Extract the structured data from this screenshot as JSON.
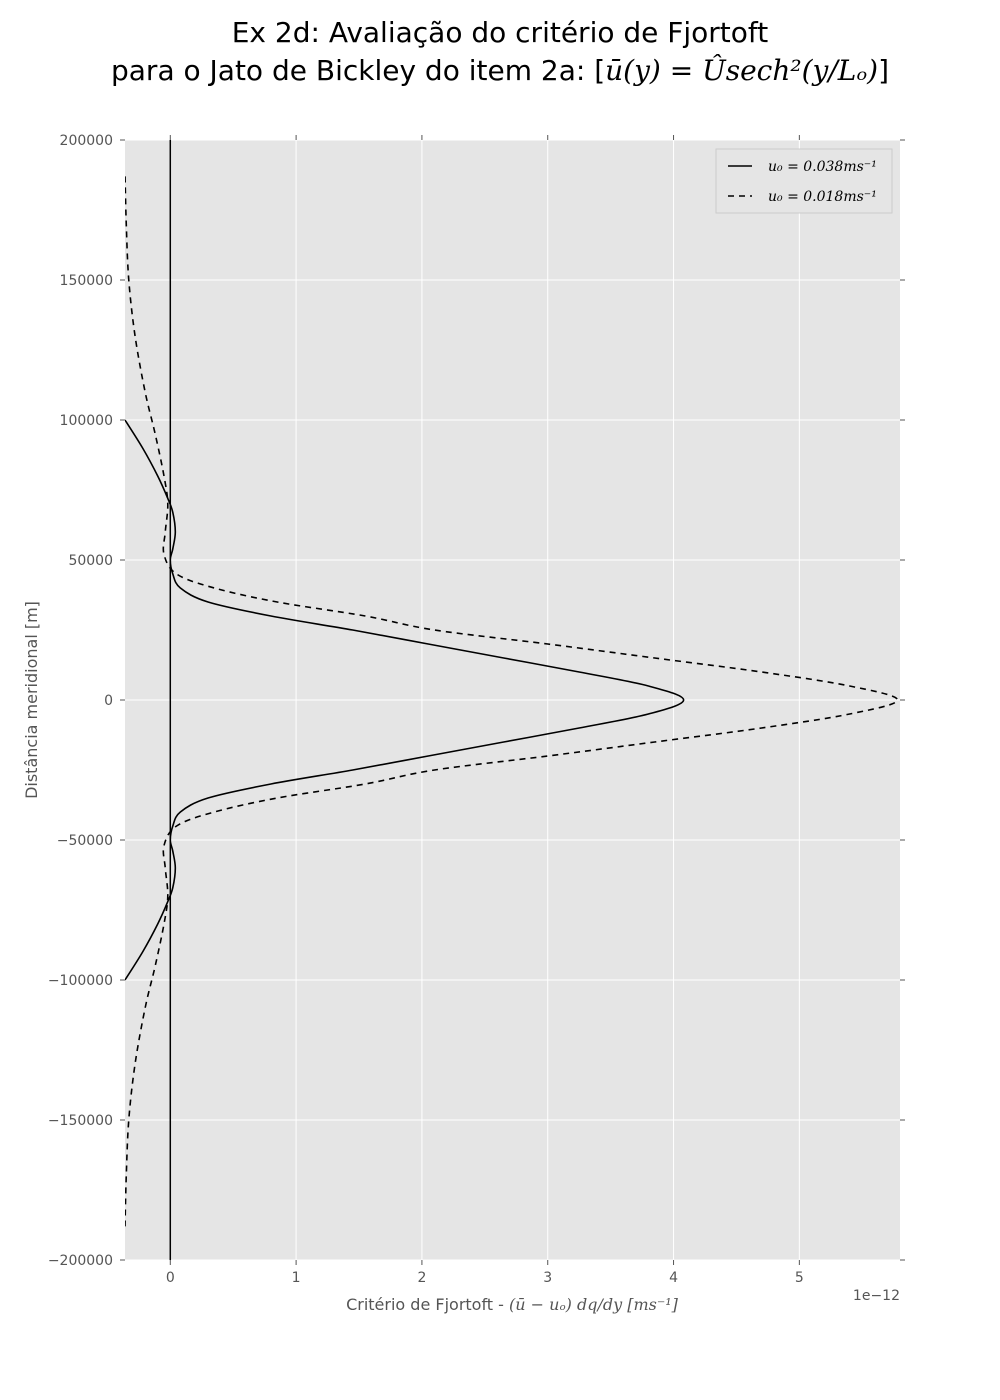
{
  "chart_data": {
    "type": "line",
    "title_line1": "Ex 2d: Avaliação do critério de Fjortoft",
    "title_line2_prefix": "para o Jato de Bickley do item 2a: [",
    "title_line2_math": "ū(y) = Ûsech²(y/Lₒ)",
    "title_line2_suffix": "]",
    "xlabel_prefix": "Critério de Fjortoft - ",
    "xlabel_math": "(ū − uₒ) dq/dy [ms⁻¹]",
    "ylabel": "Distância meridional [m]",
    "x_offset_text": "1e−12",
    "xlim": [
      -0.36,
      5.8
    ],
    "ylim": [
      -200000,
      200000
    ],
    "x_ticks": [
      0,
      1,
      2,
      3,
      4,
      5
    ],
    "x_tick_labels": [
      "0",
      "1",
      "2",
      "3",
      "4",
      "5"
    ],
    "y_ticks": [
      200000,
      150000,
      100000,
      50000,
      0,
      -50000,
      -100000,
      -150000,
      -200000
    ],
    "y_tick_labels": [
      "200000",
      "150000",
      "100000",
      "50000",
      "0",
      "−50000",
      "−100000",
      "−150000",
      "−200000"
    ],
    "grid": true,
    "legend_position": "top-right",
    "vertical_reference_line_x": 0,
    "series": [
      {
        "name": "u₀ = 0.038ms⁻¹",
        "style": "solid",
        "color": "#000000",
        "points": [
          [
            -0.36,
            -100000
          ],
          [
            -0.22,
            -90000
          ],
          [
            -0.1,
            -80000
          ],
          [
            -0.02,
            -72000
          ],
          [
            0.02,
            -67000
          ],
          [
            0.04,
            -60000
          ],
          [
            0.02,
            -54000
          ],
          [
            0.0,
            -50000
          ],
          [
            0.02,
            -45000
          ],
          [
            0.08,
            -40000
          ],
          [
            0.3,
            -35000
          ],
          [
            0.8,
            -30000
          ],
          [
            1.45,
            -25000
          ],
          [
            2.05,
            -20000
          ],
          [
            2.65,
            -15000
          ],
          [
            3.25,
            -10000
          ],
          [
            3.8,
            -5000
          ],
          [
            4.08,
            0
          ],
          [
            3.8,
            5000
          ],
          [
            3.25,
            10000
          ],
          [
            2.65,
            15000
          ],
          [
            2.05,
            20000
          ],
          [
            1.45,
            25000
          ],
          [
            0.8,
            30000
          ],
          [
            0.3,
            35000
          ],
          [
            0.08,
            40000
          ],
          [
            0.02,
            45000
          ],
          [
            0.0,
            50000
          ],
          [
            0.02,
            54000
          ],
          [
            0.04,
            60000
          ],
          [
            0.02,
            67000
          ],
          [
            -0.02,
            72000
          ],
          [
            -0.1,
            80000
          ],
          [
            -0.22,
            90000
          ],
          [
            -0.36,
            100000
          ]
        ]
      },
      {
        "name": "u₀ = 0.018ms⁻¹",
        "style": "dashed",
        "color": "#000000",
        "points": [
          [
            -0.36,
            -188000
          ],
          [
            -0.35,
            -170000
          ],
          [
            -0.33,
            -150000
          ],
          [
            -0.28,
            -130000
          ],
          [
            -0.2,
            -110000
          ],
          [
            -0.12,
            -95000
          ],
          [
            -0.05,
            -80000
          ],
          [
            -0.02,
            -70000
          ],
          [
            -0.04,
            -60000
          ],
          [
            -0.05,
            -52000
          ],
          [
            0.05,
            -45000
          ],
          [
            0.35,
            -40000
          ],
          [
            0.85,
            -35000
          ],
          [
            1.55,
            -30000
          ],
          [
            2.1,
            -25000
          ],
          [
            3.0,
            -20000
          ],
          [
            3.85,
            -15000
          ],
          [
            4.7,
            -10000
          ],
          [
            5.4,
            -5000
          ],
          [
            5.78,
            0
          ],
          [
            5.4,
            5000
          ],
          [
            4.7,
            10000
          ],
          [
            3.85,
            15000
          ],
          [
            3.0,
            20000
          ],
          [
            2.1,
            25000
          ],
          [
            1.55,
            30000
          ],
          [
            0.85,
            35000
          ],
          [
            0.35,
            40000
          ],
          [
            0.05,
            45000
          ],
          [
            -0.05,
            52000
          ],
          [
            -0.04,
            60000
          ],
          [
            -0.02,
            70000
          ],
          [
            -0.05,
            80000
          ],
          [
            -0.12,
            95000
          ],
          [
            -0.2,
            110000
          ],
          [
            -0.28,
            130000
          ],
          [
            -0.33,
            150000
          ],
          [
            -0.35,
            170000
          ],
          [
            -0.36,
            188000
          ]
        ]
      }
    ]
  }
}
